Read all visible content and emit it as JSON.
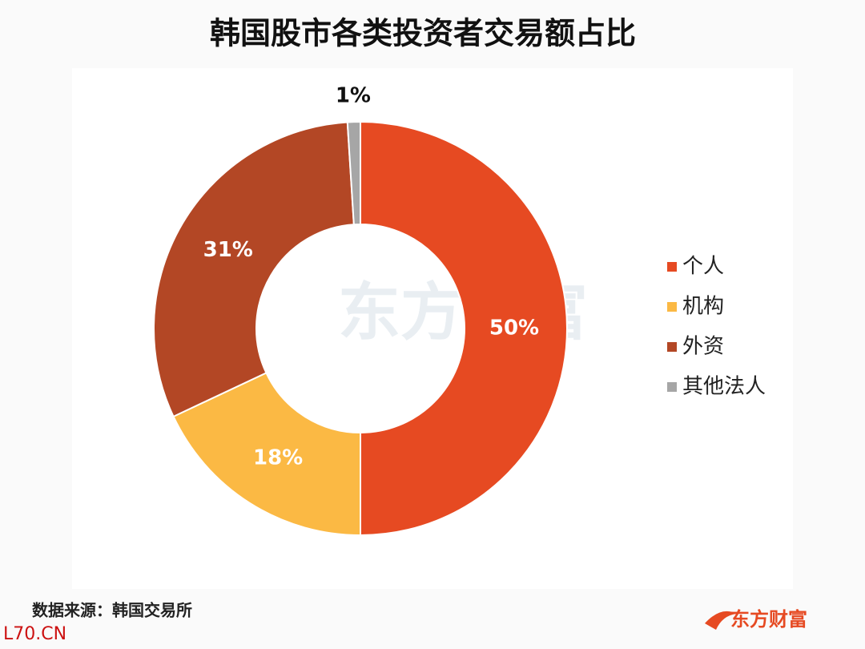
{
  "chart_data": {
    "type": "donut",
    "title": "韩国股市各类投资者交易额占比",
    "categories": [
      "个人",
      "机构",
      "外资",
      "其他法人"
    ],
    "values": [
      50,
      18,
      31,
      1
    ],
    "value_labels": [
      "50%",
      "18%",
      "31%",
      "1%"
    ],
    "colors": [
      "#e64a22",
      "#fbb944",
      "#b34725",
      "#a6a6a6"
    ],
    "legend": "right",
    "source": "数据来源：韩国交易所",
    "watermark": "东方财富",
    "logo": "东方财富",
    "site": "L70.CN"
  }
}
